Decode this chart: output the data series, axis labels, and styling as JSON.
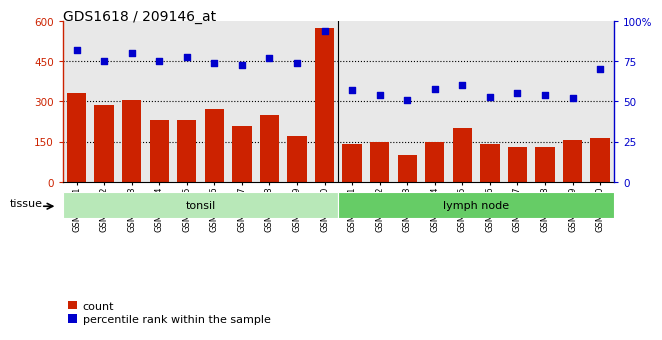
{
  "title": "GDS1618 / 209146_at",
  "categories": [
    "GSM51381",
    "GSM51382",
    "GSM51383",
    "GSM51384",
    "GSM51385",
    "GSM51386",
    "GSM51387",
    "GSM51388",
    "GSM51389",
    "GSM51390",
    "GSM51371",
    "GSM51372",
    "GSM51373",
    "GSM51374",
    "GSM51375",
    "GSM51376",
    "GSM51377",
    "GSM51378",
    "GSM51379",
    "GSM51380"
  ],
  "bar_values": [
    330,
    285,
    305,
    230,
    230,
    270,
    210,
    250,
    170,
    575,
    140,
    148,
    100,
    148,
    200,
    140,
    130,
    128,
    155,
    165
  ],
  "dot_values": [
    82,
    75,
    80,
    75,
    78,
    74,
    73,
    77,
    74,
    94,
    57,
    54,
    51,
    58,
    60,
    53,
    55,
    54,
    52,
    70
  ],
  "groups": [
    {
      "label": "tonsil",
      "start": 0,
      "end": 10
    },
    {
      "label": "lymph node",
      "start": 10,
      "end": 20
    }
  ],
  "group_colors": [
    "#b8e8b8",
    "#66cc66"
  ],
  "bar_color": "#cc2200",
  "dot_color": "#0000cc",
  "plot_bg_color": "#e8e8e8",
  "ylim_left": [
    0,
    600
  ],
  "ylim_right": [
    0,
    100
  ],
  "yticks_left": [
    0,
    150,
    300,
    450,
    600
  ],
  "yticks_right": [
    0,
    25,
    50,
    75,
    100
  ],
  "grid_values": [
    150,
    300,
    450
  ],
  "legend_count_label": "count",
  "legend_pct_label": "percentile rank within the sample",
  "tissue_label": "tissue",
  "figsize": [
    6.6,
    3.45
  ],
  "dpi": 100
}
